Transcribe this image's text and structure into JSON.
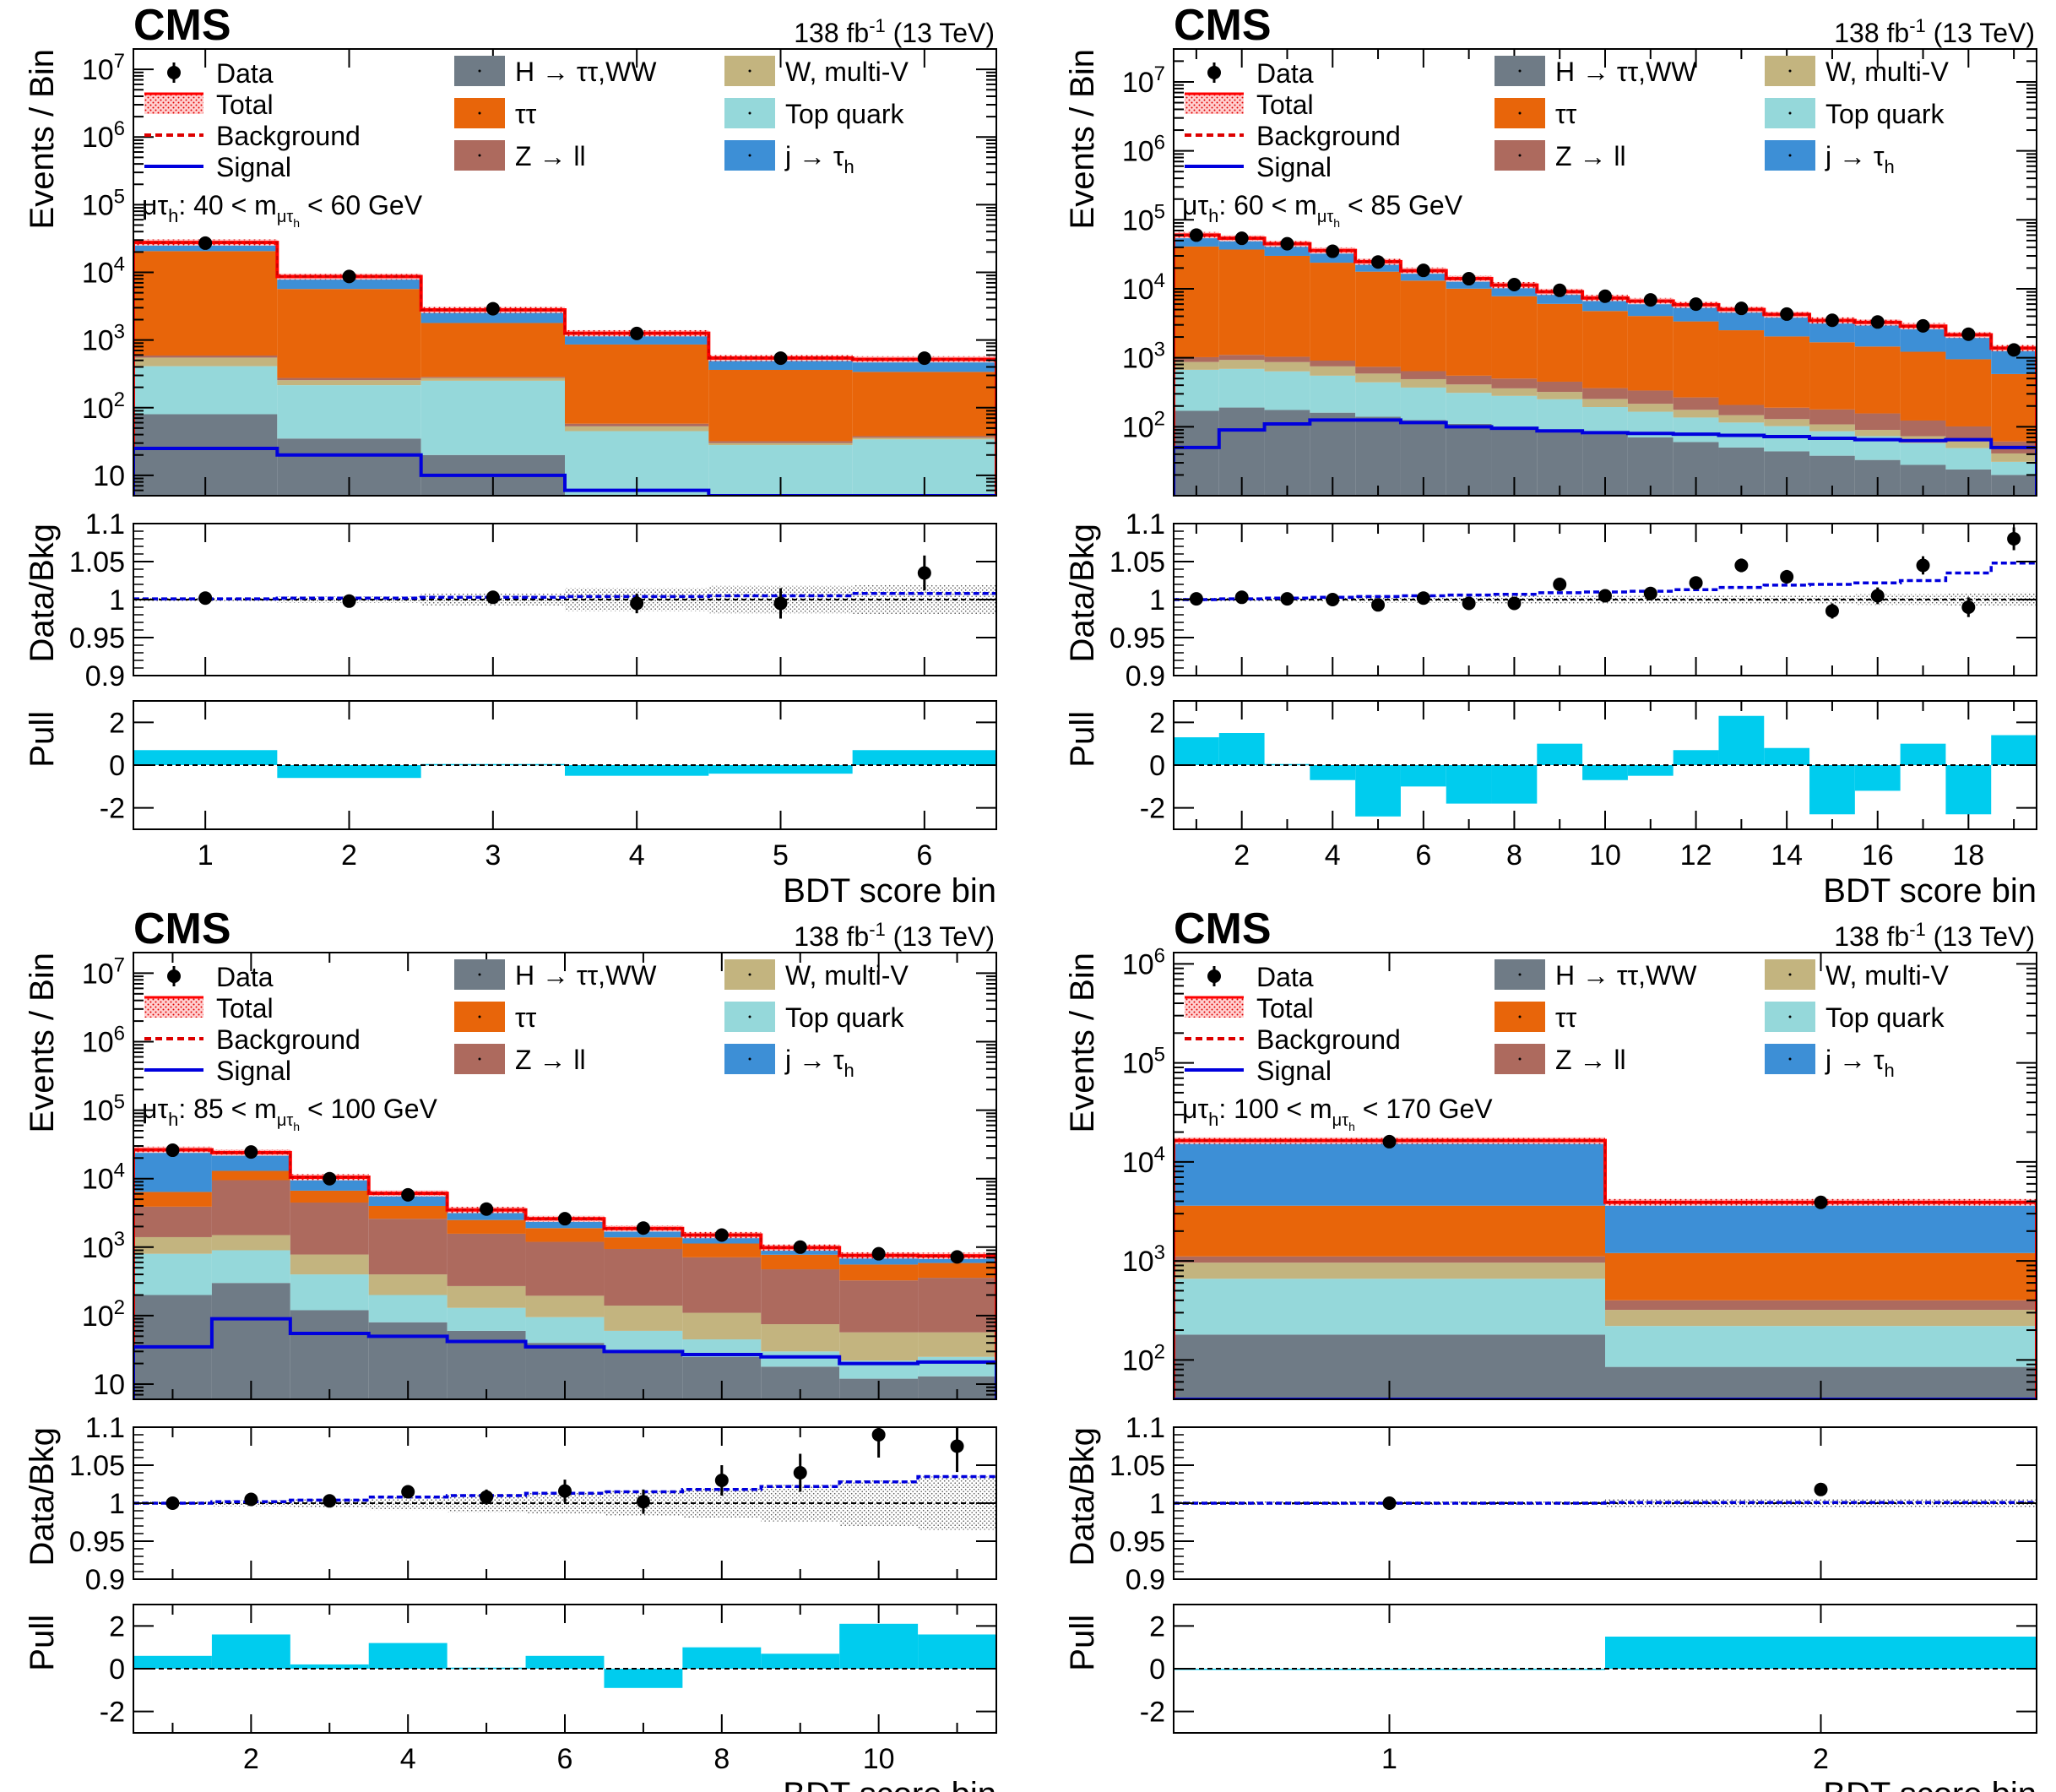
{
  "figure": {
    "experiment": "CMS",
    "lumi_label": "138 fb",
    "lumi_sup": "-1",
    "energy_label": "(13 TeV)",
    "xlabel": "BDT score bin",
    "ylabel_main": "Events / Bin",
    "ylabel_ratio": "Data/Bkg",
    "ylabel_pull": "Pull",
    "legend": [
      {
        "key": "data",
        "label": "Data"
      },
      {
        "key": "total",
        "label": "Total"
      },
      {
        "key": "background",
        "label": "Background"
      },
      {
        "key": "signal",
        "label": "Signal"
      },
      {
        "key": "htt",
        "label": "H → ττ,WW"
      },
      {
        "key": "wv",
        "label": "W, multi-V"
      },
      {
        "key": "tt",
        "label": "ττ"
      },
      {
        "key": "top",
        "label": "Top quark"
      },
      {
        "key": "zll",
        "label": "Z → ll"
      },
      {
        "key": "jfake",
        "label": "j → τ",
        "sub": "h"
      }
    ],
    "colors": {
      "htt": "#6f7b86",
      "wv": "#c3b47f",
      "tt": "#e8650a",
      "top": "#95d8da",
      "zll": "#ad6a5e",
      "jfake": "#3d8fd6",
      "total": "#ff0000",
      "signal": "#0000dd",
      "pull": "#00ccee",
      "data": "#000000"
    }
  },
  "chart_data": [
    {
      "type": "bar",
      "title": "μτh: 40 < mμτh < 60 GeV",
      "category_label": "μτ",
      "mass_text": ": 40 < m",
      "mass_text_end": " < 60 GeV",
      "x": [
        1,
        2,
        3,
        4,
        5,
        6
      ],
      "xticks": [
        1,
        2,
        3,
        4,
        5,
        6
      ],
      "xlim": [
        0.5,
        6.5
      ],
      "ylim": [
        5,
        20000000
      ],
      "yticks": [
        10,
        100,
        1000,
        10000,
        100000,
        1000000,
        10000000
      ],
      "ytick_labels": [
        "10",
        "10^2",
        "10^3",
        "10^4",
        "10^5",
        "10^6",
        "10^7"
      ],
      "stack": {
        "htt": [
          80,
          35,
          20,
          5,
          0,
          0
        ],
        "top": [
          330,
          180,
          230,
          40,
          28,
          34
        ],
        "wv": [
          140,
          40,
          25,
          8,
          2,
          2
        ],
        "zll": [
          40,
          20,
          10,
          5,
          2,
          2
        ],
        "tt": [
          20000,
          5400,
          1500,
          800,
          330,
          300
        ],
        "jfake": [
          7000,
          3000,
          1000,
          400,
          180,
          180
        ]
      },
      "signal": [
        25,
        20,
        10,
        6,
        5,
        5
      ],
      "data": [
        27000,
        8700,
        2900,
        1250,
        540,
        540
      ],
      "ratio": [
        1.002,
        0.998,
        1.003,
        0.995,
        0.995,
        1.035
      ],
      "ratio_err": [
        0.003,
        0.004,
        0.008,
        0.013,
        0.02,
        0.023
      ],
      "ratio_signal": [
        1.001,
        1.002,
        1.003,
        1.004,
        1.005,
        1.008
      ],
      "ratio_band": [
        0.002,
        0.004,
        0.008,
        0.015,
        0.018,
        0.02
      ],
      "pull": [
        0.7,
        -0.6,
        0.05,
        -0.5,
        -0.4,
        0.7
      ]
    },
    {
      "type": "bar",
      "title": "μτh: 60 < mμτh < 85 GeV",
      "category_label": "μτ",
      "mass_text": ": 60 < m",
      "mass_text_end": " < 85 GeV",
      "x": [
        1,
        2,
        3,
        4,
        5,
        6,
        7,
        8,
        9,
        10,
        11,
        12,
        13,
        14,
        15,
        16,
        17,
        18,
        19
      ],
      "xticks": [
        2,
        4,
        6,
        8,
        10,
        12,
        14,
        16,
        18
      ],
      "xlim": [
        0.5,
        19.5
      ],
      "ylim": [
        10,
        30000000
      ],
      "yticks": [
        100,
        1000,
        10000,
        100000,
        1000000,
        10000000
      ],
      "ytick_labels": [
        "10^2",
        "10^3",
        "10^4",
        "10^5",
        "10^6",
        "10^7"
      ],
      "stack": {
        "htt": [
          170,
          190,
          175,
          160,
          140,
          125,
          110,
          100,
          90,
          78,
          70,
          60,
          50,
          44,
          38,
          33,
          28,
          24,
          20
        ],
        "top": [
          500,
          500,
          460,
          390,
          300,
          245,
          200,
          180,
          160,
          115,
          95,
          76,
          65,
          58,
          48,
          40,
          30,
          25,
          11
        ],
        "wv": [
          200,
          240,
          230,
          200,
          150,
          120,
          100,
          80,
          70,
          60,
          50,
          40,
          32,
          27,
          22,
          17,
          15,
          12,
          10
        ],
        "zll": [
          150,
          170,
          170,
          160,
          150,
          150,
          140,
          140,
          130,
          110,
          120,
          90,
          60,
          60,
          70,
          66,
          50,
          40,
          20
        ],
        "tt": [
          40000,
          36000,
          29000,
          23000,
          17000,
          12500,
          9500,
          7300,
          5600,
          4400,
          3700,
          3100,
          2300,
          1850,
          1500,
          1300,
          1100,
          850,
          520
        ],
        "jfake": [
          19000,
          17000,
          15000,
          12000,
          7000,
          5200,
          4000,
          3500,
          3000,
          2600,
          2600,
          2500,
          2500,
          2200,
          1800,
          1800,
          1650,
          1200,
          800
        ]
      },
      "signal": [
        50,
        90,
        110,
        125,
        125,
        115,
        100,
        95,
        87,
        82,
        80,
        78,
        75,
        72,
        68,
        65,
        63,
        65,
        50
      ],
      "data": [
        60000,
        54000,
        45000,
        35000,
        24500,
        18500,
        14000,
        11500,
        9500,
        7800,
        6900,
        6000,
        5200,
        4300,
        3500,
        3300,
        2900,
        2200,
        1300
      ],
      "ratio": [
        1.001,
        1.003,
        1.001,
        1.0,
        0.993,
        1.002,
        0.995,
        0.995,
        1.02,
        1.005,
        1.008,
        1.022,
        1.045,
        1.03,
        0.985,
        1.005,
        1.045,
        0.99,
        1.08
      ],
      "ratio_err": [
        0.003,
        0.003,
        0.003,
        0.004,
        0.005,
        0.005,
        0.006,
        0.006,
        0.006,
        0.007,
        0.007,
        0.008,
        0.009,
        0.009,
        0.01,
        0.011,
        0.012,
        0.013,
        0.015
      ],
      "ratio_signal": [
        1.0,
        1.001,
        1.002,
        1.003,
        1.004,
        1.005,
        1.006,
        1.007,
        1.009,
        1.01,
        1.011,
        1.013,
        1.016,
        1.019,
        1.02,
        1.022,
        1.025,
        1.035,
        1.048
      ],
      "ratio_band": [
        0.003,
        0.003,
        0.003,
        0.003,
        0.004,
        0.004,
        0.004,
        0.005,
        0.005,
        0.005,
        0.005,
        0.005,
        0.006,
        0.006,
        0.006,
        0.007,
        0.007,
        0.008,
        0.009
      ],
      "pull": [
        1.3,
        1.5,
        0.05,
        -0.7,
        -2.4,
        -1.0,
        -1.8,
        -1.8,
        1.0,
        -0.7,
        -0.5,
        0.7,
        2.3,
        0.8,
        -2.3,
        -1.2,
        1.0,
        -2.3,
        1.4
      ]
    },
    {
      "type": "bar",
      "title": "μτh: 85 < mμτh < 100 GeV",
      "category_label": "μτ",
      "mass_text": ": 85 < m",
      "mass_text_end": " < 100 GeV",
      "x": [
        1,
        2,
        3,
        4,
        5,
        6,
        7,
        8,
        9,
        10,
        11
      ],
      "xticks": [
        2,
        4,
        6,
        8,
        10
      ],
      "xlim": [
        0.5,
        11.5
      ],
      "ylim": [
        6,
        20000000
      ],
      "yticks": [
        10,
        100,
        1000,
        10000,
        100000,
        1000000,
        10000000
      ],
      "ytick_labels": [
        "10",
        "10^2",
        "10^3",
        "10^4",
        "10^5",
        "10^6",
        "10^7"
      ],
      "stack": {
        "htt": [
          200,
          300,
          120,
          80,
          60,
          40,
          30,
          25,
          18,
          12,
          13
        ],
        "top": [
          600,
          600,
          280,
          120,
          70,
          55,
          30,
          20,
          12,
          10,
          12
        ],
        "wv": [
          600,
          600,
          380,
          200,
          140,
          100,
          80,
          65,
          45,
          35,
          32
        ],
        "zll": [
          2500,
          8000,
          3700,
          2200,
          1300,
          1000,
          800,
          600,
          400,
          270,
          300
        ],
        "tt": [
          2500,
          3500,
          2200,
          1400,
          920,
          700,
          450,
          420,
          300,
          230,
          230
        ],
        "jfake": [
          20000,
          11000,
          3800,
          2100,
          1000,
          700,
          480,
          370,
          210,
          200,
          160
        ]
      },
      "signal": [
        35,
        90,
        55,
        50,
        42,
        35,
        30,
        27,
        25,
        20,
        21
      ],
      "data": [
        26000,
        24500,
        10000,
        5800,
        3600,
        2600,
        1900,
        1500,
        1000,
        800,
        720
      ],
      "ratio": [
        1.0,
        1.005,
        1.003,
        1.015,
        1.008,
        1.016,
        1.002,
        1.03,
        1.04,
        1.09,
        1.075
      ],
      "ratio_err": [
        0.003,
        0.004,
        0.005,
        0.008,
        0.01,
        0.015,
        0.016,
        0.02,
        0.025,
        0.03,
        0.034
      ],
      "ratio_signal": [
        1.0,
        1.002,
        1.004,
        1.008,
        1.01,
        1.013,
        1.015,
        1.018,
        1.022,
        1.028,
        1.035
      ],
      "ratio_band": [
        0.002,
        0.004,
        0.006,
        0.009,
        0.012,
        0.014,
        0.017,
        0.02,
        0.024,
        0.03,
        0.035
      ],
      "pull": [
        0.6,
        1.6,
        0.2,
        1.2,
        0.05,
        0.6,
        -0.9,
        1.0,
        0.7,
        2.1,
        1.6
      ]
    },
    {
      "type": "bar",
      "title": "μτh: 100 < mμτh < 170 GeV",
      "category_label": "μτ",
      "mass_text": ": 100 < m",
      "mass_text_end": " < 170 GeV",
      "x": [
        1,
        2
      ],
      "xticks": [
        1,
        2
      ],
      "xlim": [
        0.5,
        2.5
      ],
      "ylim": [
        40,
        1300000
      ],
      "yticks": [
        100,
        1000,
        10000,
        100000,
        1000000
      ],
      "ytick_labels": [
        "10^2",
        "10^3",
        "10^4",
        "10^5",
        "10^6"
      ],
      "stack": {
        "htt": [
          180,
          85
        ],
        "top": [
          480,
          135
        ],
        "wv": [
          300,
          100
        ],
        "zll": [
          150,
          80
        ],
        "tt": [
          2500,
          800
        ],
        "jfake": [
          12800,
          2700
        ]
      },
      "signal": [
        40,
        40
      ],
      "data": [
        16000,
        3900
      ],
      "ratio": [
        1.0,
        1.018
      ],
      "ratio_err": [
        0.003,
        0.008
      ],
      "ratio_signal": [
        1.0,
        1.001
      ],
      "ratio_band": [
        0.003,
        0.006
      ],
      "pull": [
        0.0,
        1.5
      ]
    }
  ]
}
